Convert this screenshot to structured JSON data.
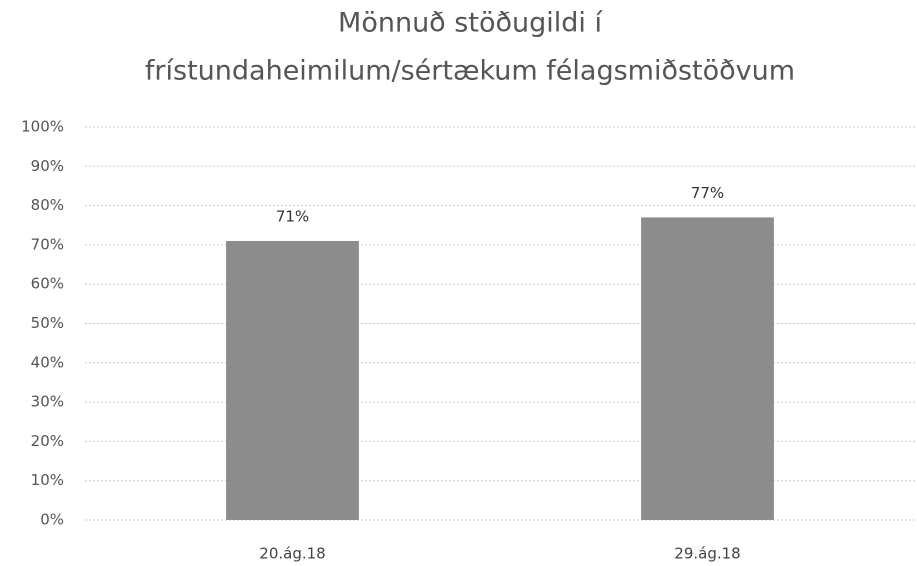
{
  "chart_data": {
    "type": "bar",
    "title": [
      "Mönnuð stöðugildi í",
      "frístundaheimilum/sértækum félagsmiðstöðvum"
    ],
    "categories": [
      "20.ág.18",
      "29.ág.18"
    ],
    "values": [
      71,
      77
    ],
    "value_labels": [
      "71%",
      "77%"
    ],
    "color": "#8c8c8c",
    "ylim": [
      0,
      100
    ],
    "yticks": [
      {
        "value": 0,
        "label": "0%"
      },
      {
        "value": 10,
        "label": "10%"
      },
      {
        "value": 20,
        "label": "20%"
      },
      {
        "value": 30,
        "label": "30%"
      },
      {
        "value": 40,
        "label": "40%"
      },
      {
        "value": 50,
        "label": "50%"
      },
      {
        "value": 60,
        "label": "60%"
      },
      {
        "value": 70,
        "label": "70%"
      },
      {
        "value": 80,
        "label": "80%"
      },
      {
        "value": 90,
        "label": "90%"
      },
      {
        "value": 100,
        "label": "100%"
      }
    ],
    "grid": true
  }
}
